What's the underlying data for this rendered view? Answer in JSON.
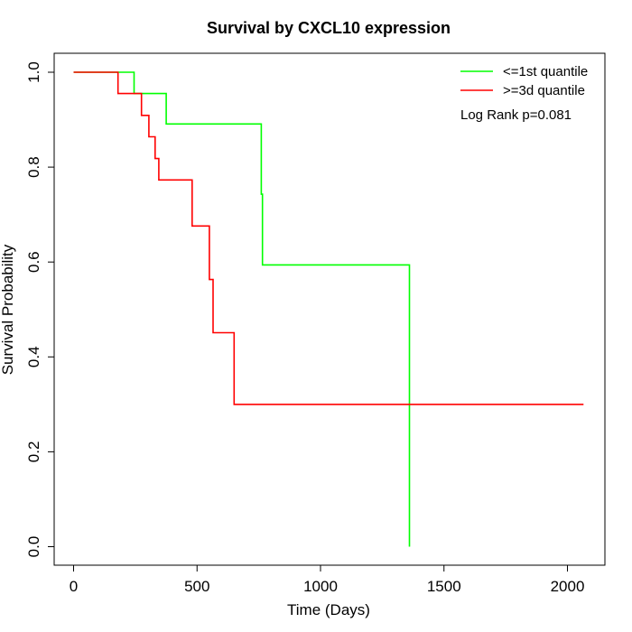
{
  "chart_data": {
    "type": "line",
    "title": "Survival by CXCL10 expression",
    "xlabel": "Time (Days)",
    "ylabel": "Survival Probability",
    "xlim": [
      0,
      2070
    ],
    "ylim": [
      0,
      1
    ],
    "x_ticks": [
      0,
      500,
      1000,
      1500,
      2000
    ],
    "x_tick_labels": [
      "0",
      "500",
      "1000",
      "1500",
      "2000"
    ],
    "y_ticks": [
      0,
      0.2,
      0.4,
      0.6,
      0.8,
      1
    ],
    "y_tick_labels": [
      "0.0",
      "0.2",
      "0.4",
      "0.6",
      "0.8",
      "1.0"
    ],
    "grid": false,
    "legend_position": "top-right",
    "annotation": "Log Rank p=0.081",
    "series": [
      {
        "name": "<=1st quantile",
        "color": "#00ff00",
        "x": [
          0,
          245,
          245,
          375,
          375,
          760,
          760,
          765,
          765,
          1360,
          1360
        ],
        "y": [
          1.0,
          1.0,
          0.955,
          0.955,
          0.891,
          0.891,
          0.743,
          0.743,
          0.594,
          0.594,
          0.0
        ]
      },
      {
        "name": ">=3d quantile",
        "color": "#ff0000",
        "x": [
          0,
          180,
          180,
          275,
          275,
          305,
          305,
          330,
          330,
          345,
          345,
          480,
          480,
          550,
          550,
          565,
          565,
          650,
          650,
          2065
        ],
        "y": [
          1.0,
          1.0,
          0.955,
          0.955,
          0.909,
          0.909,
          0.864,
          0.864,
          0.818,
          0.818,
          0.773,
          0.773,
          0.676,
          0.676,
          0.563,
          0.563,
          0.451,
          0.451,
          0.3,
          0.3
        ]
      }
    ]
  }
}
